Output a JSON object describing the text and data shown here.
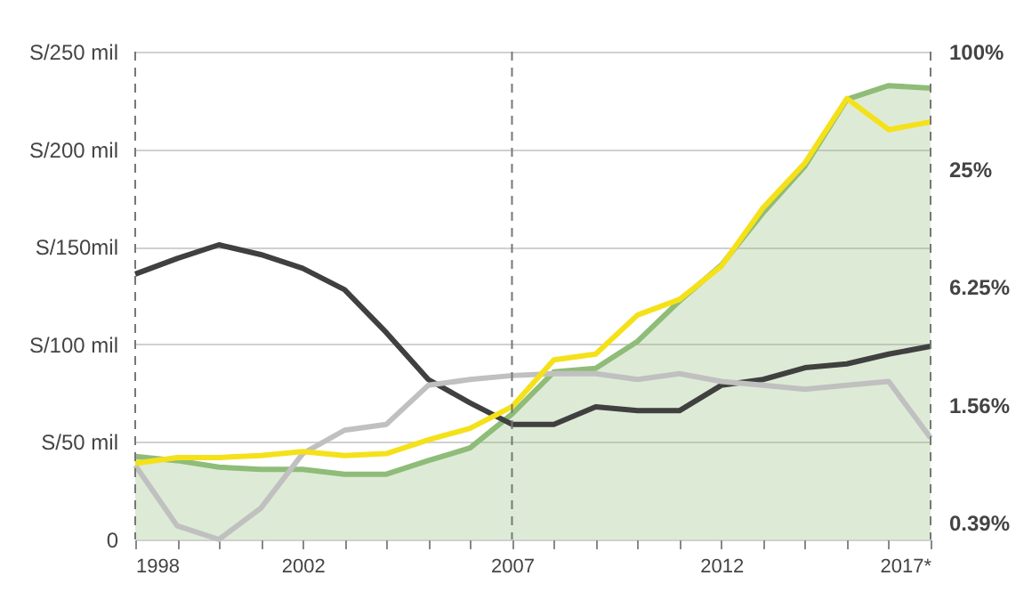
{
  "chart_data": {
    "type": "line",
    "x": [
      1998,
      1999,
      2000,
      2001,
      2002,
      2003,
      2004,
      2005,
      2006,
      2007,
      2008,
      2009,
      2010,
      2011,
      2012,
      2013,
      2014,
      2015,
      2016,
      2017
    ],
    "series": [
      {
        "type": "area",
        "axis": "y2",
        "color": "#8fbc78",
        "values": [
          0.85,
          0.81,
          0.75,
          0.73,
          0.73,
          0.69,
          0.69,
          0.81,
          0.94,
          1.4,
          2.3,
          2.4,
          3.3,
          5.3,
          8.1,
          15,
          26,
          57,
          67,
          65
        ]
      },
      {
        "color": "#404040",
        "values": [
          136,
          144,
          151,
          146,
          139,
          128,
          106,
          82,
          70,
          59,
          59,
          68,
          66,
          66,
          79,
          82,
          88,
          90,
          95,
          99
        ]
      },
      {
        "color": "#c0c0c0",
        "values": [
          38,
          7,
          0,
          16,
          44,
          56,
          59,
          79,
          82,
          84,
          85,
          85,
          82,
          85,
          81,
          79,
          77,
          79,
          81,
          52
        ]
      },
      {
        "color": "#f5e11a",
        "values": [
          39,
          42,
          42,
          43,
          45,
          43,
          44,
          51,
          57,
          68,
          92,
          95,
          115,
          123,
          140,
          170,
          193,
          226,
          210,
          214
        ]
      }
    ],
    "xlim": [
      1998,
      2017
    ],
    "xticks": [
      1998,
      {
        "value": 1999,
        "label": null
      },
      {
        "value": 2000,
        "label": null
      },
      {
        "value": 2001,
        "label": null
      },
      2002,
      {
        "value": 2003,
        "label": null
      },
      {
        "value": 2004,
        "label": null
      },
      {
        "value": 2005,
        "label": null
      },
      {
        "value": 2006,
        "label": null
      },
      2007,
      {
        "value": 2008,
        "label": null
      },
      {
        "value": 2009,
        "label": null
      },
      {
        "value": 2010,
        "label": null
      },
      {
        "value": 2011,
        "label": null
      },
      2012,
      {
        "value": 2013,
        "label": null
      },
      {
        "value": 2014,
        "label": null
      },
      {
        "value": 2015,
        "label": null
      },
      {
        "value": 2016,
        "label": null
      },
      {
        "value": 2017,
        "label": "2017*"
      }
    ],
    "ylim": [
      0,
      250
    ],
    "yticks": [
      0,
      {
        "value": 50,
        "label": "S/50 mil"
      },
      {
        "value": 100,
        "label": "S/100 mil"
      },
      {
        "value": 150,
        "label": "S/150mil"
      },
      {
        "value": 200,
        "label": "S/200 mil"
      },
      {
        "value": 250,
        "label": "S/250 mil"
      }
    ],
    "y2lim": [
      0.32,
      100
    ],
    "y2ticks": [
      {
        "value": 0.39,
        "label": "0.39%"
      },
      {
        "value": 1.56,
        "label": "1.56%"
      },
      {
        "value": 6.25,
        "label": "6.25%"
      },
      {
        "value": 25,
        "label": "25%"
      },
      {
        "value": 100,
        "label": "100%"
      }
    ],
    "log": "y2",
    "grid": "y",
    "legend": false,
    "ref_lines": [
      {
        "axis": "x",
        "value": 1998,
        "line_style": "dashed"
      },
      {
        "axis": "x",
        "value": 2007,
        "line_style": "dashed"
      },
      {
        "axis": "x",
        "value": 2017,
        "line_style": "dashed"
      }
    ]
  }
}
